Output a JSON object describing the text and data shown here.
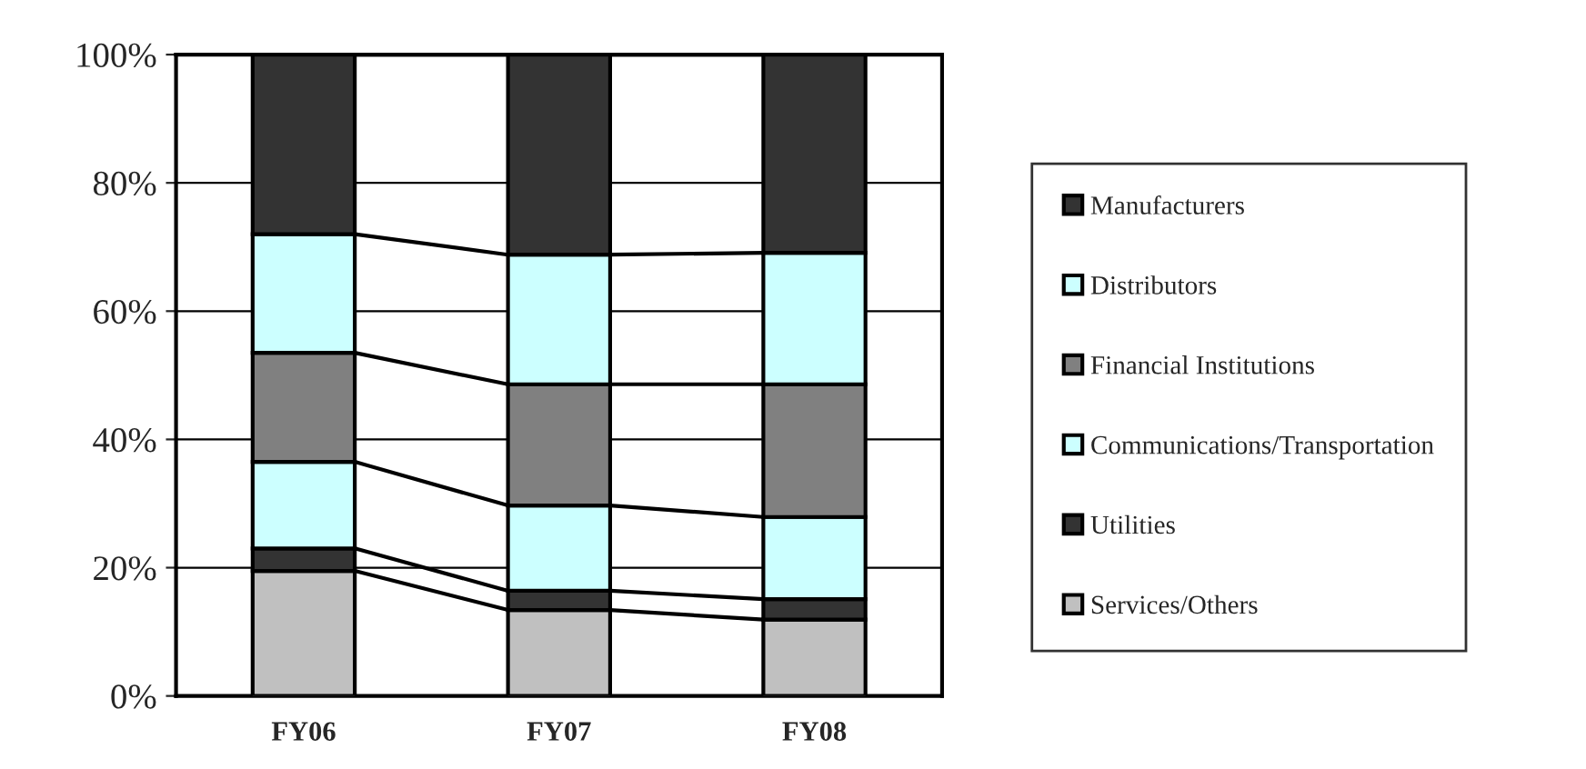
{
  "chart_data": {
    "type": "bar",
    "stacked": true,
    "categories": [
      "FY06",
      "FY07",
      "FY08"
    ],
    "series": [
      {
        "name": "Services/Others",
        "color": "#c0c0c0",
        "values": [
          19.5,
          13.4,
          11.9
        ]
      },
      {
        "name": "Utilities",
        "color": "#333333",
        "values": [
          3.5,
          3.0,
          3.2
        ]
      },
      {
        "name": "Communications/Transportation",
        "color": "#ccffff",
        "values": [
          13.5,
          13.3,
          12.8
        ]
      },
      {
        "name": "Financial Institutions",
        "color": "#808080",
        "values": [
          17.0,
          18.9,
          20.7
        ]
      },
      {
        "name": "Distributors",
        "color": "#ccffff",
        "values": [
          18.5,
          20.2,
          20.5
        ]
      },
      {
        "name": "Manufacturers",
        "color": "#333333",
        "values": [
          28.0,
          31.2,
          30.9
        ]
      }
    ],
    "ylim": [
      0,
      100
    ],
    "yticks": [
      {
        "value": 0,
        "label": "0%"
      },
      {
        "value": 20,
        "label": "20%"
      },
      {
        "value": 40,
        "label": "40%"
      },
      {
        "value": 60,
        "label": "60%"
      },
      {
        "value": 80,
        "label": "80%"
      },
      {
        "value": 100,
        "label": "100%"
      }
    ],
    "grid": "y",
    "legend": "right"
  }
}
